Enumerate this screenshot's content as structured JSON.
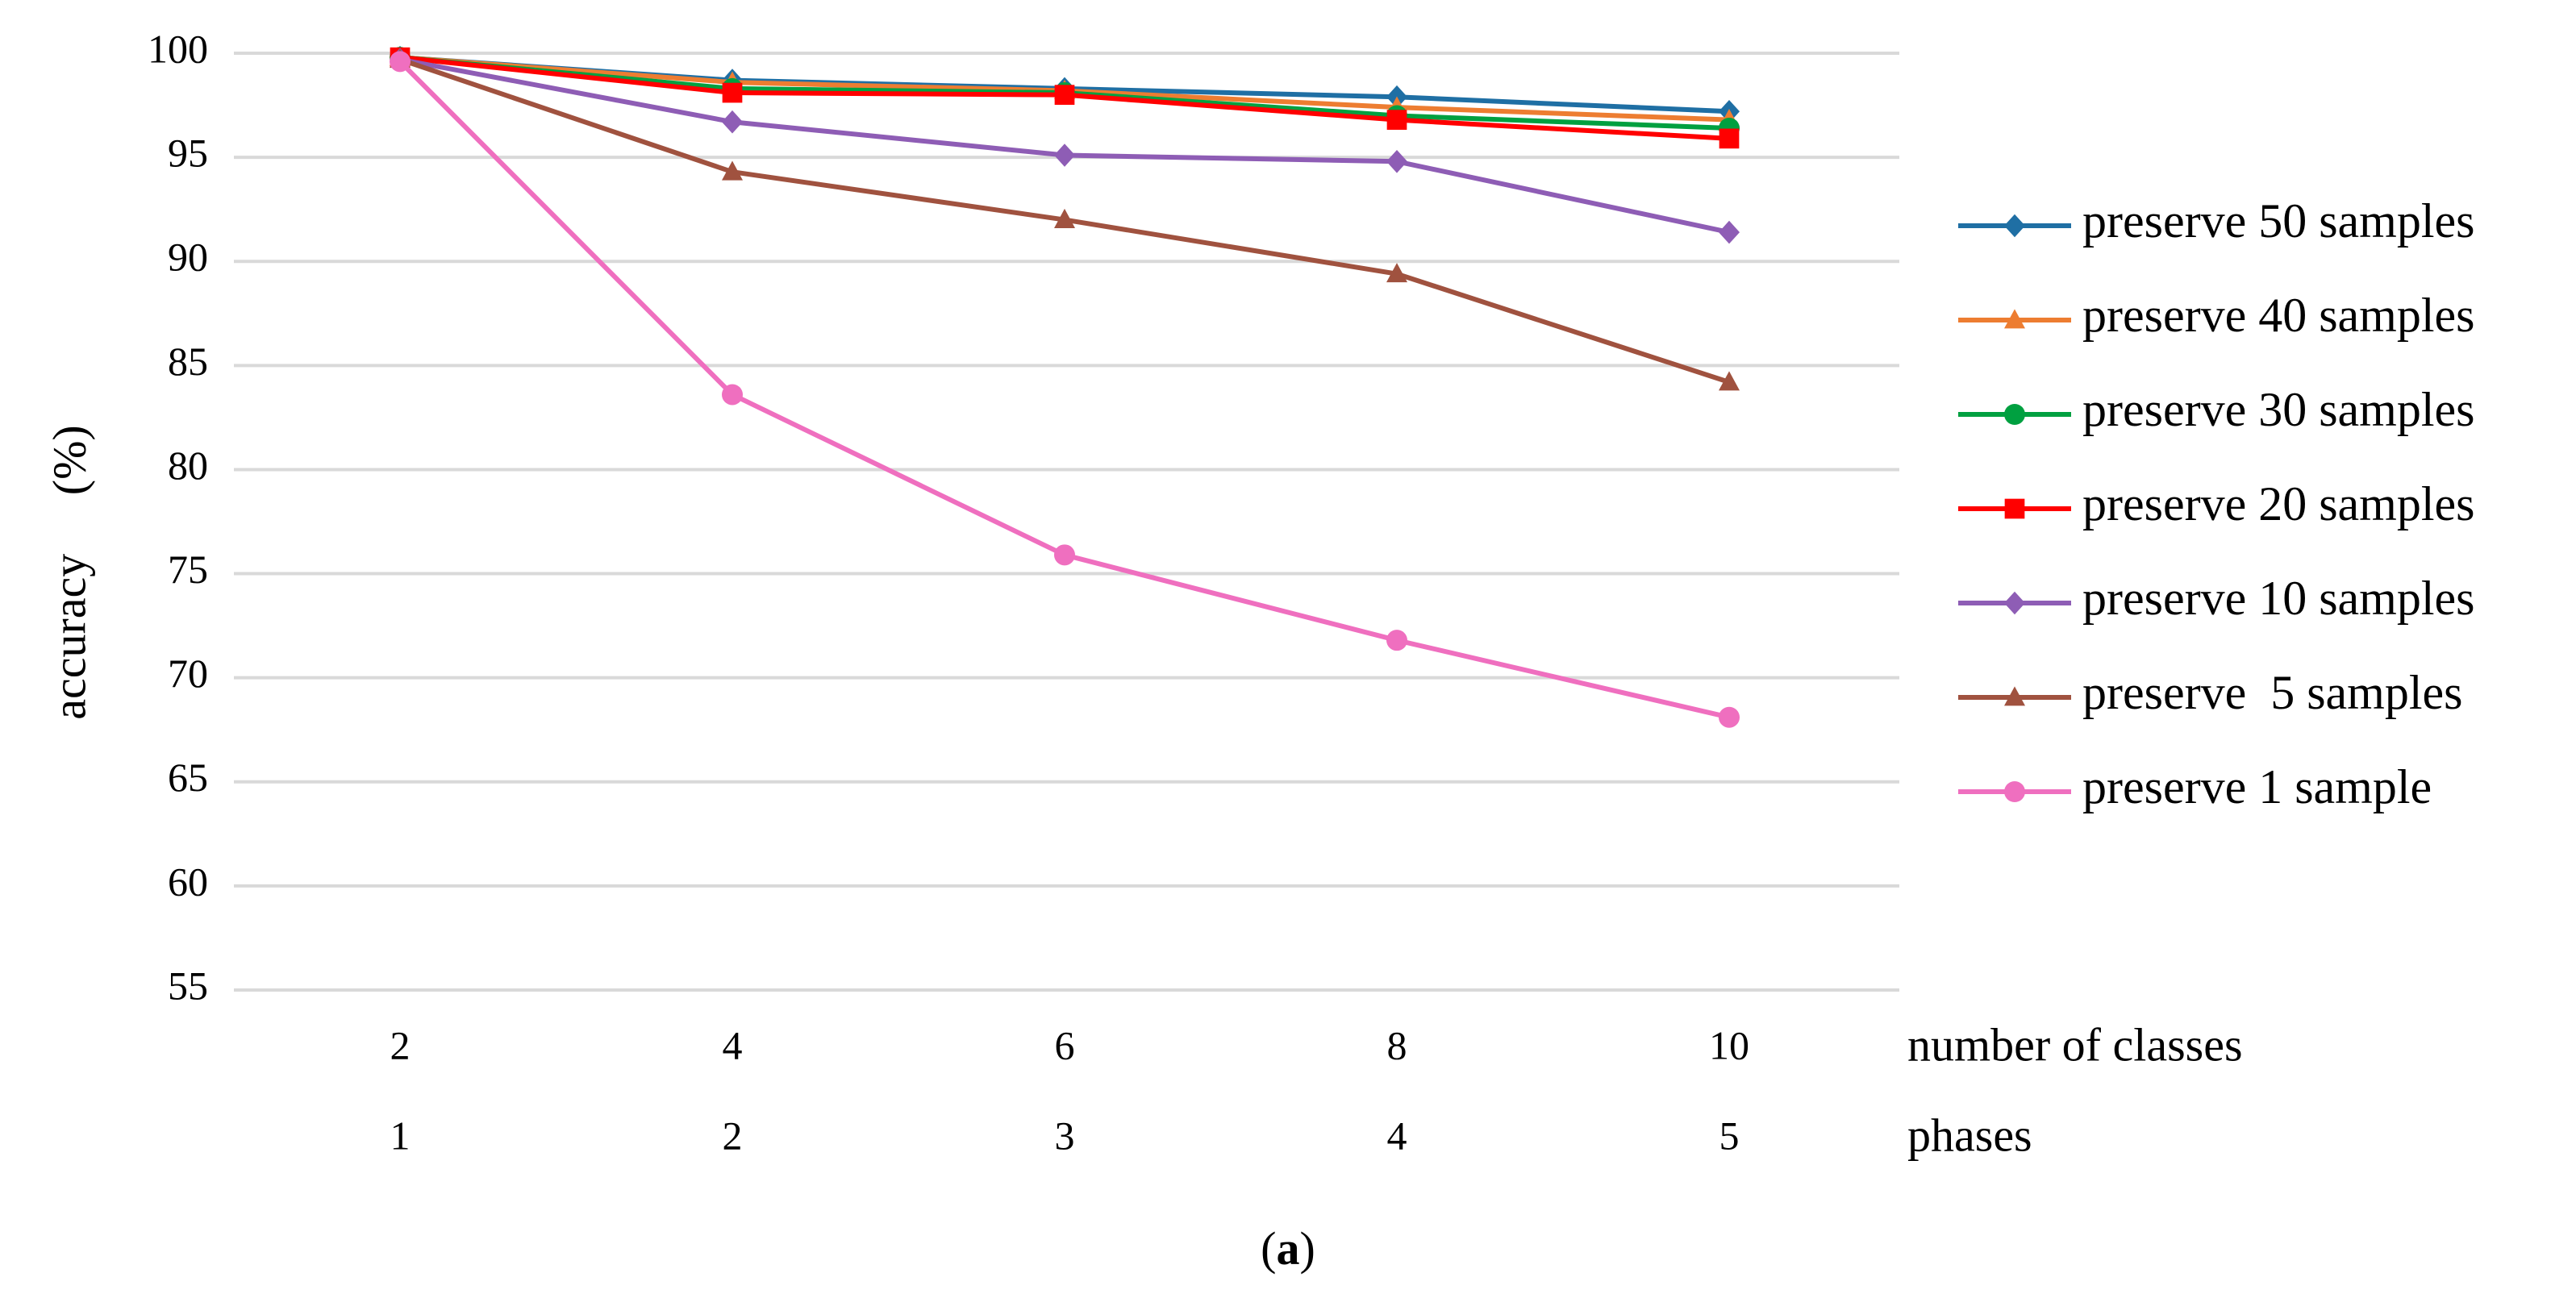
{
  "chart_data": {
    "type": "line",
    "ylabel": "accuracy 　(%)",
    "ylim": [
      55,
      100
    ],
    "yticks": [
      55,
      60,
      65,
      70,
      75,
      80,
      85,
      90,
      95,
      100
    ],
    "grid": true,
    "x_axis_rows": [
      {
        "label": "number of classes",
        "categories": [
          "2",
          "4",
          "6",
          "8",
          "10"
        ]
      },
      {
        "label": "phases",
        "categories": [
          "1",
          "2",
          "3",
          "4",
          "5"
        ]
      }
    ],
    "legend_position": "right",
    "series": [
      {
        "name": "preserve 50 samples",
        "color": "#1f6fa4",
        "marker": "diamond",
        "values": [
          99.8,
          98.7,
          98.3,
          97.9,
          97.2
        ]
      },
      {
        "name": "preserve 40 samples",
        "color": "#ed7d31",
        "marker": "triangle",
        "values": [
          99.8,
          98.6,
          98.2,
          97.4,
          96.8
        ]
      },
      {
        "name": "preserve 30 samples",
        "color": "#00a040",
        "marker": "circle",
        "values": [
          99.8,
          98.3,
          98.1,
          97.0,
          96.4
        ]
      },
      {
        "name": "preserve 20 samples",
        "color": "#ff0000",
        "marker": "square",
        "values": [
          99.8,
          98.1,
          98.0,
          96.8,
          95.9
        ]
      },
      {
        "name": "preserve 10 samples",
        "color": "#8e5db5",
        "marker": "diamond",
        "values": [
          99.7,
          96.7,
          95.1,
          94.8,
          91.4
        ]
      },
      {
        "name": "preserve  5 samples",
        "color": "#a0523f",
        "marker": "triangle",
        "values": [
          99.7,
          94.3,
          92.0,
          89.4,
          84.2
        ]
      },
      {
        "name": "preserve 1 sample",
        "color": "#ef6fbf",
        "marker": "circle",
        "values": [
          99.6,
          83.6,
          75.9,
          71.8,
          68.1
        ]
      }
    ]
  },
  "caption": {
    "open": "(",
    "letter": "a",
    "close": ")"
  }
}
